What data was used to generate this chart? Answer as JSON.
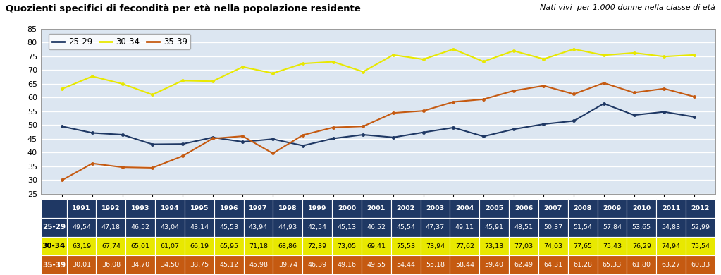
{
  "title": "Quozienti specifici di fecondità per età nella popolazione residente",
  "subtitle": "Nati vivi  per 1.000 donne nella classe di età",
  "years": [
    1991,
    1992,
    1993,
    1994,
    1995,
    1996,
    1997,
    1998,
    1999,
    2000,
    2001,
    2002,
    2003,
    2004,
    2005,
    2006,
    2007,
    2008,
    2009,
    2010,
    2011,
    2012
  ],
  "series_2529": [
    49.54,
    47.18,
    46.52,
    43.04,
    43.14,
    45.53,
    43.94,
    44.93,
    42.54,
    45.13,
    46.52,
    45.54,
    47.37,
    49.11,
    45.91,
    48.51,
    50.37,
    51.54,
    57.84,
    53.65,
    54.83,
    52.99
  ],
  "series_3034": [
    63.19,
    67.74,
    65.01,
    61.07,
    66.19,
    65.95,
    71.18,
    68.86,
    72.39,
    73.05,
    69.41,
    75.53,
    73.94,
    77.62,
    73.13,
    77.03,
    74.03,
    77.65,
    75.43,
    76.29,
    74.94,
    75.54
  ],
  "series_3539": [
    30.01,
    36.08,
    34.7,
    34.5,
    38.75,
    45.12,
    45.98,
    39.74,
    46.39,
    49.16,
    49.55,
    54.44,
    55.18,
    58.44,
    59.4,
    62.49,
    64.31,
    61.28,
    65.33,
    61.8,
    63.27,
    60.33
  ],
  "color_2529": "#1f3864",
  "color_3034": "#e8e800",
  "color_3539": "#c55a11",
  "bg_plot": "#dce6f1",
  "bg_figure": "#ffffff",
  "ylim": [
    25,
    85
  ],
  "yticks": [
    25,
    30,
    35,
    40,
    45,
    50,
    55,
    60,
    65,
    70,
    75,
    80,
    85
  ],
  "legend_labels": [
    "25-29",
    "30-34",
    "35-39"
  ],
  "table_row_labels": [
    "25-29",
    "30-34",
    "35-39"
  ],
  "table_row_bg": [
    "#1f3864",
    "#e8e800",
    "#c55a11"
  ],
  "table_row_tc": [
    "white",
    "black",
    "white"
  ],
  "table_header_bg": "#1f3864",
  "table_header_tc": "white"
}
